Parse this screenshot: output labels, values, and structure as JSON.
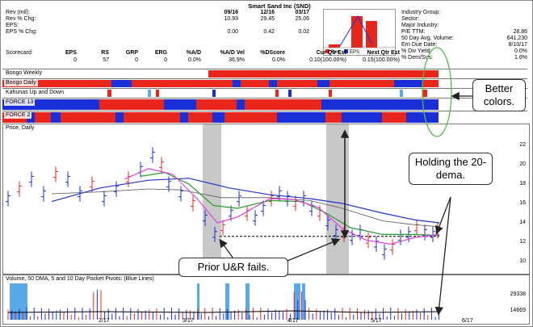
{
  "header": {
    "title": "Smart Sand Inc (SND)",
    "row_labels": [
      "Rev (mil):",
      "Rev % Chg:",
      "EPS:",
      "EPS % Chg:"
    ],
    "quarters": [
      "09/16",
      "12/16",
      "03/17"
    ],
    "rev": [
      "10.93",
      "29.45",
      "25.06"
    ],
    "eps": [
      "0.00",
      "0.42",
      "0.02"
    ],
    "right_labels": [
      "Industry Group:",
      "Sector:",
      "Major Industry:",
      "P/E TTM:",
      "50 Day Avg. Volume:",
      "Ern Due Date:",
      "% Div Yield:",
      "% Dem/Sus:"
    ],
    "right_values": [
      "",
      "",
      "",
      "28.86",
      "641,230",
      "8/10/17",
      "0.0%",
      "1.6%"
    ],
    "scorecard_label": "Scorecard:",
    "score_headers": [
      "EPS",
      "RS",
      "GRP",
      "ERG",
      "%A/D",
      "%A/D Vel",
      "%DScore",
      "Cur Qtr Est",
      "Next Qtr Est"
    ],
    "score_values": [
      "0",
      "57",
      "0",
      "0",
      "0.0%",
      "36.9%",
      "0.0%",
      "0.10(100.00%)",
      "0.15(100.00%)"
    ],
    "mini_legend": [
      "Rev",
      "EPS"
    ]
  },
  "strips": [
    {
      "name": "Bongo Weekly"
    },
    {
      "name": "Bongo Daily"
    },
    {
      "name": "Kahunas Up and Down"
    },
    {
      "name": "FORCE 13"
    },
    {
      "name": "FORCE 2"
    }
  ],
  "price_pane": {
    "label": "Price, Daily",
    "y_ticks": [
      "22",
      "20",
      "18",
      "16",
      "14",
      "12",
      "10"
    ]
  },
  "volume_pane": {
    "label": "Volume, 50 DMA, 5 and 10 Day Pocket Pivots: (Blue Lines)",
    "y_ticks": [
      "29338",
      "14669"
    ],
    "x_ticks": [
      "2/17",
      "3/17",
      "4/17",
      "5/17",
      "6/17"
    ]
  },
  "callouts": {
    "better": "Better colors.",
    "holding": "Holding the 20-dema.",
    "prior": "Prior U&R fails."
  },
  "colors": {
    "red": "#e8261c",
    "blue": "#1a2fd8",
    "gray": "#c8c8c8",
    "green": "#2a9a2a",
    "magenta": "#e040e0",
    "avg_blue": "#2233cc",
    "light_blue": "#5aa8e8",
    "ellipse": "#55bb44"
  }
}
